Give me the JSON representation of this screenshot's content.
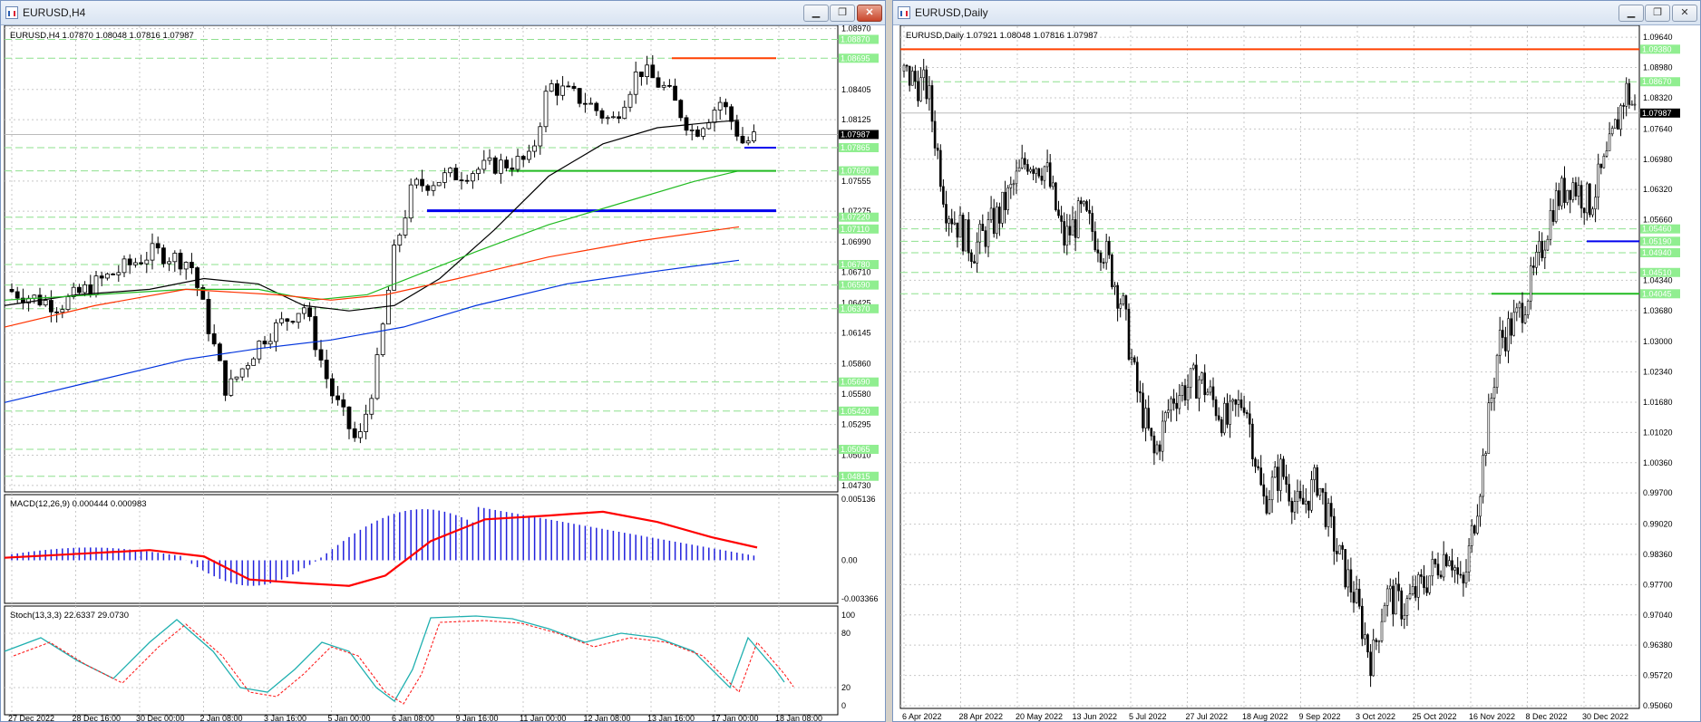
{
  "windows": [
    {
      "title": "EURUSD,H4",
      "info": "EURUSD,H4  1.07870 1.08048 1.07816 1.07987",
      "current_price": "1.07987",
      "price_ticks": [
        "1.08970",
        "1.08405",
        "1.08125",
        "1.07555",
        "1.07275",
        "1.06990",
        "1.06710",
        "1.06425",
        "1.06145",
        "1.05860",
        "1.05580",
        "1.05295",
        "1.05010",
        "1.04730"
      ],
      "level_labels": [
        "1.08870",
        "1.08695",
        "1.07865",
        "1.07650",
        "1.07220",
        "1.07110",
        "1.06780",
        "1.06590",
        "1.06370",
        "1.05690",
        "1.05420",
        "1.05065",
        "1.04815"
      ],
      "time_labels": [
        "27 Dec 2022",
        "28 Dec 16:00",
        "30 Dec 00:00",
        "2 Jan 08:00",
        "3 Jan 16:00",
        "5 Jan 00:00",
        "6 Jan 08:00",
        "9 Jan 16:00",
        "11 Jan 00:00",
        "12 Jan 08:00",
        "13 Jan 16:00",
        "17 Jan 00:00",
        "18 Jan 08:00"
      ],
      "macd": {
        "label": "MACD(12,26,9) 0.000444 0.000983",
        "ticks": [
          "0.005136",
          "0.00",
          "-0.003366"
        ]
      },
      "stoch": {
        "label": "Stoch(13,3,3) 22.6337 29.0730",
        "ticks": [
          "100",
          "80",
          "20",
          "0"
        ]
      },
      "colors": {
        "resistance": "#ff4000",
        "support": "#0000ee",
        "green_level": "#22bb22",
        "ma_black": "#000000",
        "ma_green": "#22bb22",
        "ma_red": "#ff3300",
        "ma_blue": "#0033dd"
      }
    },
    {
      "title": "EURUSD,Daily",
      "info": "EURUSD,Daily  1.07921 1.08048 1.07816 1.07987",
      "current_price": "1.07987",
      "price_ticks": [
        "1.09640",
        "1.08980",
        "1.08320",
        "1.07640",
        "1.06980",
        "1.06320",
        "1.05660",
        "1.04340",
        "1.03680",
        "1.03000",
        "1.02340",
        "1.01680",
        "1.01020",
        "1.00360",
        "0.99700",
        "0.99020",
        "0.98360",
        "0.97700",
        "0.97040",
        "0.96380",
        "0.95720",
        "0.95060"
      ],
      "level_labels": [
        "1.09380",
        "1.08670",
        "1.05460",
        "1.05190",
        "1.04940",
        "1.04510",
        "1.04045"
      ],
      "time_labels": [
        "6 Apr 2022",
        "28 Apr 2022",
        "20 May 2022",
        "13 Jun 2022",
        "5 Jul 2022",
        "27 Jul 2022",
        "18 Aug 2022",
        "9 Sep 2022",
        "3 Oct 2022",
        "25 Oct 2022",
        "16 Nov 2022",
        "8 Dec 2022",
        "30 Dec 2022"
      ]
    }
  ],
  "window_buttons": {
    "minimize": "▁",
    "restore": "❐",
    "close": "✕"
  }
}
